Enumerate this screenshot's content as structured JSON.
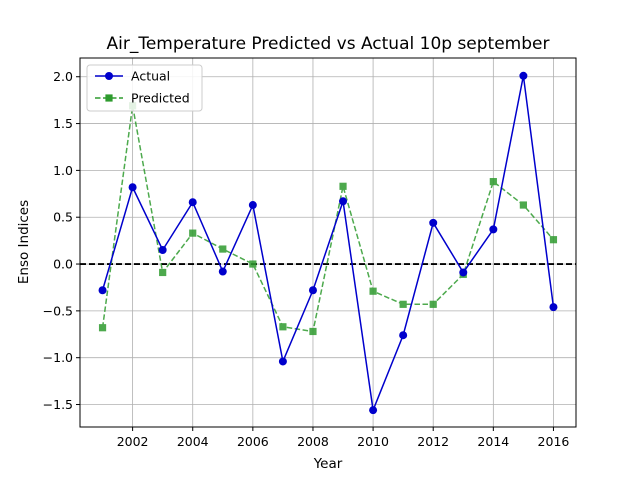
{
  "chart_data": {
    "type": "line",
    "title": "Air_Temperature Predicted vs Actual 10p september",
    "xlabel": "Year",
    "ylabel": "Enso Indices",
    "xlim": [
      2000.25,
      2016.75
    ],
    "ylim": [
      -1.74,
      2.2
    ],
    "x_ticks": [
      2002,
      2004,
      2006,
      2008,
      2010,
      2012,
      2014,
      2016
    ],
    "y_ticks": [
      -1.5,
      -1.0,
      -0.5,
      0.0,
      0.5,
      1.0,
      1.5,
      2.0
    ],
    "x_tick_labels": [
      "2002",
      "2004",
      "2006",
      "2008",
      "2010",
      "2012",
      "2014",
      "2016"
    ],
    "y_tick_labels": [
      "−1.5",
      "−1.0",
      "−0.5",
      "0.0",
      "0.5",
      "1.0",
      "1.5",
      "2.0"
    ],
    "grid": true,
    "legend_position": "top-left",
    "reference_line": {
      "y": 0.0,
      "color": "#000000",
      "style": "dashed"
    },
    "x": [
      2001,
      2002,
      2003,
      2004,
      2005,
      2006,
      2007,
      2008,
      2009,
      2010,
      2011,
      2012,
      2013,
      2014,
      2015,
      2016
    ],
    "series": [
      {
        "name": "Actual",
        "color": "#0000cc",
        "marker": "circle",
        "line_style": "solid",
        "values": [
          -0.28,
          0.82,
          0.15,
          0.66,
          -0.08,
          0.63,
          -1.04,
          -0.28,
          0.67,
          -1.56,
          -0.76,
          0.44,
          -0.09,
          0.37,
          2.01,
          -0.46
        ]
      },
      {
        "name": "Predicted",
        "color": "#2e9b2e",
        "marker": "square",
        "line_style": "dashed",
        "values": [
          -0.68,
          1.69,
          -0.09,
          0.33,
          0.16,
          0.0,
          -0.67,
          -0.72,
          0.83,
          -0.29,
          -0.43,
          -0.43,
          -0.11,
          0.88,
          0.63,
          0.26
        ]
      }
    ]
  }
}
